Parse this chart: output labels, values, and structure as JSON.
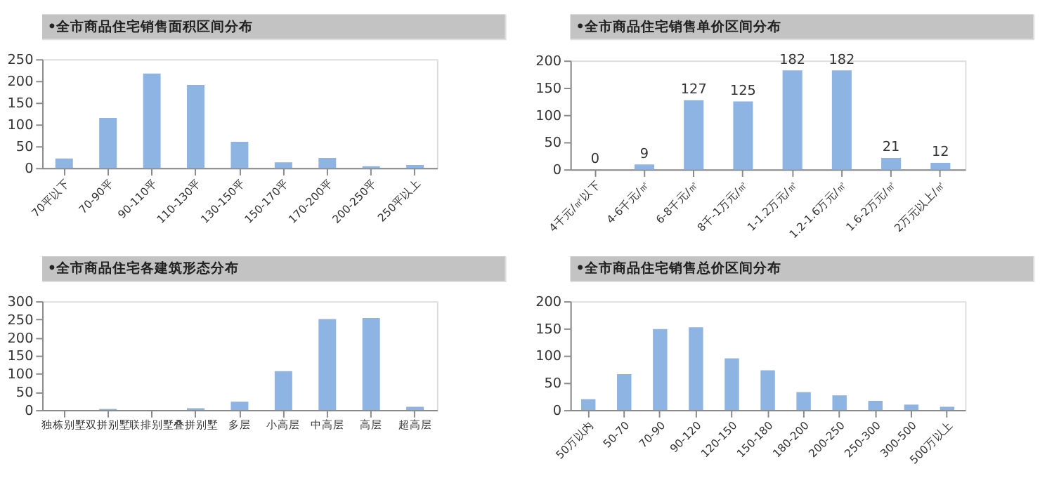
{
  "chart_data": [
    {
      "type": "bar",
      "title": "•全市商品住宅销售面积区间分布",
      "categories": [
        "70平以下",
        "70-90平",
        "90-110平",
        "110-130平",
        "130-150平",
        "150-170平",
        "170-200平",
        "200-250平",
        "250平以上"
      ],
      "values": [
        22,
        115,
        217,
        191,
        60,
        13,
        23,
        4,
        7
      ],
      "color": "#8db4e2",
      "ylim": [
        0,
        250
      ],
      "yticks": [
        0,
        50,
        100,
        150,
        200,
        250
      ],
      "grid": false
    },
    {
      "type": "bar",
      "title": "•全市商品住宅销售单价区间分布",
      "categories": [
        "4千元/㎡以下",
        "4-6千元/㎡",
        "6-8千元/㎡",
        "8千-1万元/㎡",
        "1-1.2万元/㎡",
        "1.2-1.6万元/㎡",
        "1.6-2万元/㎡",
        "2万元以上/㎡"
      ],
      "values": [
        0,
        9,
        127,
        125,
        182,
        182,
        21,
        12
      ],
      "color": "#8db4e2",
      "ylim": [
        0,
        200
      ],
      "yticks": [
        0,
        50,
        100,
        150,
        200
      ],
      "data_labels": true,
      "grid": false
    },
    {
      "type": "bar",
      "title": "•全市商品住宅各建筑形态分布",
      "categories": [
        "独栋别墅",
        "双拼别墅",
        "联排别墅",
        "叠拼别墅",
        "多层",
        "小高层",
        "中高层",
        "高层",
        "超高层"
      ],
      "values": [
        0,
        3,
        0,
        5,
        23,
        107,
        251,
        254,
        9
      ],
      "color": "#8db4e2",
      "ylim": [
        0,
        300
      ],
      "yticks": [
        0,
        50,
        100,
        150,
        200,
        250,
        300
      ],
      "grid": false
    },
    {
      "type": "bar",
      "title": "•全市商品住宅销售总价区间分布",
      "categories": [
        "50万以内",
        "50-70",
        "70-90",
        "90-120",
        "120-150",
        "150-180",
        "180-200",
        "200-250",
        "250-300",
        "300-500",
        "500万以上"
      ],
      "values": [
        20,
        66,
        149,
        152,
        95,
        73,
        33,
        27,
        17,
        10,
        6
      ],
      "color": "#8db4e2",
      "ylim": [
        0,
        200
      ],
      "yticks": [
        0,
        50,
        100,
        150,
        200
      ],
      "grid": false
    }
  ]
}
